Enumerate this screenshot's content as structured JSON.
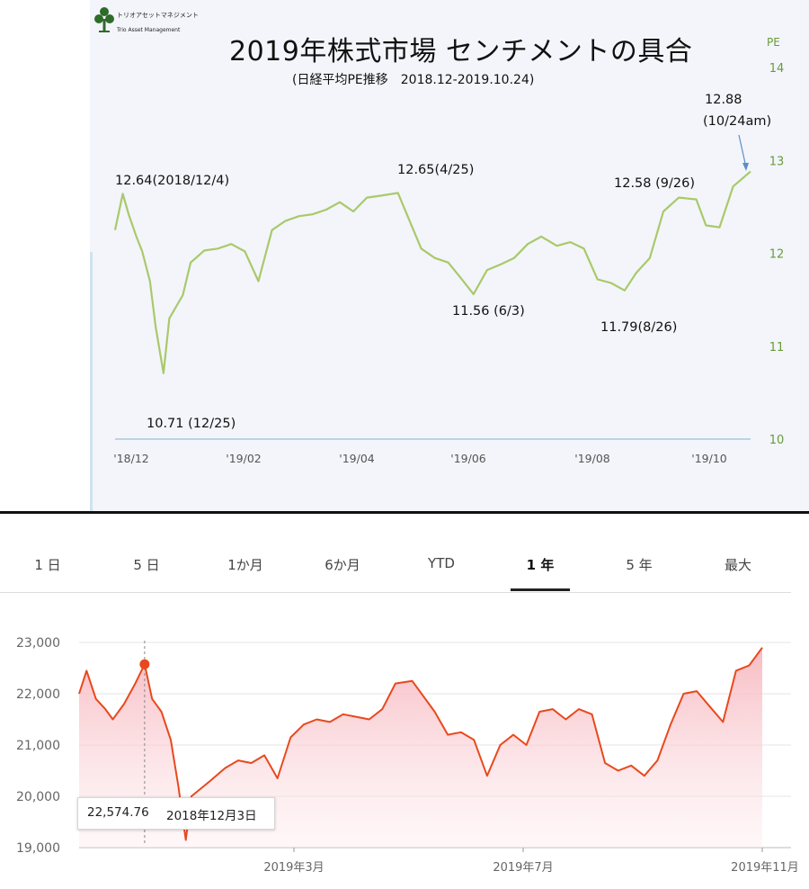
{
  "top_chart": {
    "logo": {
      "name_jp": "トリオアセットマネジメント",
      "name_en": "Trio Asset Management"
    },
    "title": "2019年株式市場 センチメントの具合",
    "subtitle": "(日経平均PE推移　2018.12-2019.10.24)",
    "y_unit": "PE",
    "annotations": {
      "high_dec": "12.64(2018/12/4)",
      "low_dec": "10.71 (12/25)",
      "high_apr": "12.65(4/25)",
      "low_jun": "11.56 (6/3)",
      "low_aug": "11.79(8/26)",
      "sep": "12.58 (9/26)",
      "latest_value": "12.88",
      "latest_date": "(10/24am)"
    }
  },
  "bottom_chart": {
    "tabs": [
      {
        "label": "1 日",
        "active": false
      },
      {
        "label": "5 日",
        "active": false
      },
      {
        "label": "1か月",
        "active": false
      },
      {
        "label": "6か月",
        "active": false
      },
      {
        "label": "YTD",
        "active": false
      },
      {
        "label": "1 年",
        "active": true
      },
      {
        "label": "5 年",
        "active": false
      },
      {
        "label": "最大",
        "active": false
      }
    ],
    "tooltip": {
      "value": "22,574.76",
      "date": "2018年12月3日"
    },
    "colors": {
      "line": "#e8491d",
      "fill": "#f7c6cc",
      "marker": "#e8491d"
    }
  },
  "chart_data": [
    {
      "type": "line",
      "title": "2019年株式市場 センチメントの具合",
      "subtitle": "(日経平均PE推移　2018.12-2019.10.24)",
      "xlabel": "",
      "ylabel": "PE",
      "ylim": [
        10,
        14
      ],
      "yticks": [
        10,
        11,
        12,
        13,
        14
      ],
      "x_ticks": [
        "'18/12",
        "'19/02",
        "'19/04",
        "'19/06",
        "'19/08",
        "'19/10"
      ],
      "grid": false,
      "series": [
        {
          "name": "",
          "color": "#a9c96a",
          "x": [
            "2018-11-30",
            "2018-12-04",
            "2018-12-07",
            "2018-12-11",
            "2018-12-14",
            "2018-12-18",
            "2018-12-21",
            "2018-12-25",
            "2018-12-28",
            "2019-01-04",
            "2019-01-08",
            "2019-01-15",
            "2019-01-22",
            "2019-01-29",
            "2019-02-05",
            "2019-02-12",
            "2019-02-19",
            "2019-02-26",
            "2019-03-05",
            "2019-03-12",
            "2019-03-19",
            "2019-03-26",
            "2019-04-02",
            "2019-04-09",
            "2019-04-16",
            "2019-04-25",
            "2019-05-07",
            "2019-05-14",
            "2019-05-21",
            "2019-05-28",
            "2019-06-03",
            "2019-06-10",
            "2019-06-17",
            "2019-06-24",
            "2019-07-01",
            "2019-07-08",
            "2019-07-16",
            "2019-07-23",
            "2019-07-30",
            "2019-08-06",
            "2019-08-13",
            "2019-08-20",
            "2019-08-26",
            "2019-09-02",
            "2019-09-09",
            "2019-09-17",
            "2019-09-26",
            "2019-10-01",
            "2019-10-08",
            "2019-10-15",
            "2019-10-24"
          ],
          "y": [
            12.25,
            12.64,
            12.42,
            12.18,
            12.02,
            11.7,
            11.2,
            10.71,
            11.3,
            11.55,
            11.9,
            12.03,
            12.05,
            12.1,
            12.02,
            11.7,
            12.25,
            12.35,
            12.4,
            12.42,
            12.47,
            12.55,
            12.45,
            12.6,
            12.62,
            12.65,
            12.05,
            11.95,
            11.9,
            11.72,
            11.56,
            11.82,
            11.88,
            11.95,
            12.1,
            12.18,
            12.08,
            12.12,
            12.05,
            11.72,
            11.68,
            11.6,
            11.79,
            11.95,
            12.45,
            12.6,
            12.58,
            12.3,
            12.28,
            12.72,
            12.88
          ]
        }
      ]
    },
    {
      "type": "area",
      "title": "",
      "xlabel": "",
      "ylabel": "",
      "ylim": [
        19000,
        23000
      ],
      "yticks": [
        "19,000",
        "20,000",
        "21,000",
        "22,000",
        "23,000"
      ],
      "yticks_num": [
        19000,
        20000,
        21000,
        22000,
        23000
      ],
      "x_ticks": [
        "2019年3月",
        "2019年7月",
        "2019年11月"
      ],
      "grid": true,
      "highlight": {
        "x": "2018-12-03",
        "y": 22574.76
      },
      "series": [
        {
          "name": "",
          "color": "#e8491d",
          "x": [
            "2018-10-29",
            "2018-11-02",
            "2018-11-07",
            "2018-11-12",
            "2018-11-16",
            "2018-11-22",
            "2018-11-28",
            "2018-12-03",
            "2018-12-07",
            "2018-12-12",
            "2018-12-17",
            "2018-12-21",
            "2018-12-25",
            "2018-12-28",
            "2019-01-07",
            "2019-01-15",
            "2019-01-22",
            "2019-01-29",
            "2019-02-05",
            "2019-02-12",
            "2019-02-19",
            "2019-02-26",
            "2019-03-05",
            "2019-03-12",
            "2019-03-19",
            "2019-03-26",
            "2019-04-02",
            "2019-04-09",
            "2019-04-16",
            "2019-04-25",
            "2019-05-07",
            "2019-05-14",
            "2019-05-21",
            "2019-05-28",
            "2019-06-04",
            "2019-06-11",
            "2019-06-18",
            "2019-06-25",
            "2019-07-02",
            "2019-07-09",
            "2019-07-16",
            "2019-07-23",
            "2019-07-30",
            "2019-08-06",
            "2019-08-13",
            "2019-08-20",
            "2019-08-27",
            "2019-09-03",
            "2019-09-10",
            "2019-09-17",
            "2019-09-24",
            "2019-10-01",
            "2019-10-08",
            "2019-10-15",
            "2019-10-22",
            "2019-10-29"
          ],
          "y": [
            22000,
            22450,
            21900,
            21700,
            21500,
            21800,
            22200,
            22574.76,
            21900,
            21650,
            21100,
            20200,
            19150,
            20000,
            20300,
            20550,
            20700,
            20650,
            20800,
            20350,
            21150,
            21400,
            21500,
            21450,
            21600,
            21550,
            21500,
            21700,
            22200,
            22250,
            21650,
            21200,
            21250,
            21100,
            20400,
            21000,
            21200,
            21000,
            21650,
            21700,
            21500,
            21700,
            21600,
            20650,
            20500,
            20600,
            20400,
            20700,
            21400,
            22000,
            22050,
            21750,
            21450,
            22450,
            22550,
            22900
          ]
        }
      ]
    }
  ]
}
